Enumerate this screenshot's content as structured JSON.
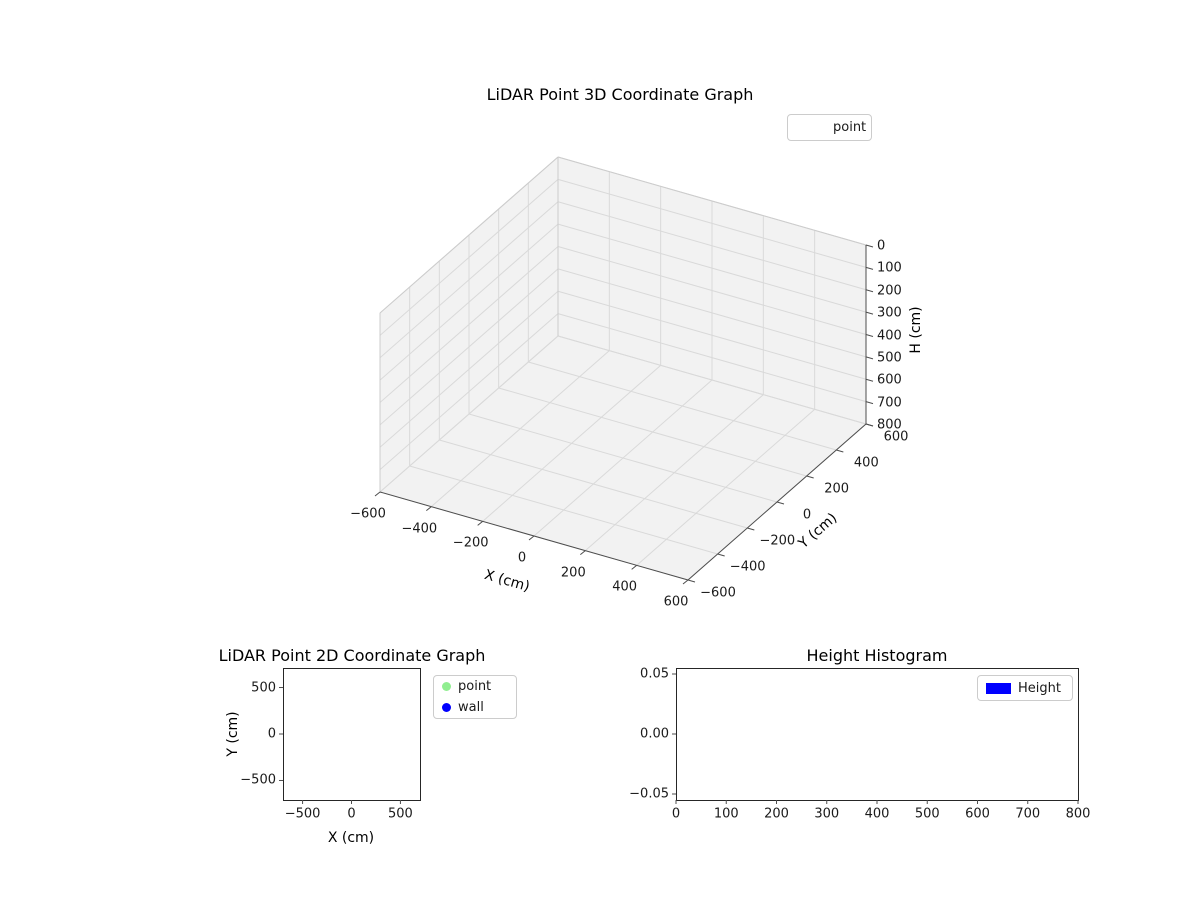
{
  "figure": {
    "background": "#ffffff"
  },
  "chart_data": [
    {
      "id": "lidar-3d",
      "type": "scatter3d",
      "title": "LiDAR Point 3D Coordinate Graph",
      "xlabel": "X (cm)",
      "ylabel": "Y (cm)",
      "zlabel": "H (cm)",
      "xticks": [
        -600,
        -400,
        -200,
        0,
        200,
        400,
        600
      ],
      "xtick_labels": [
        "−600",
        "−400",
        "−200",
        "0",
        "200",
        "400",
        "600"
      ],
      "yticks": [
        -600,
        -400,
        -200,
        0,
        200,
        400,
        600
      ],
      "ytick_labels": [
        "−600",
        "−400",
        "−200",
        "0",
        "200",
        "400",
        "600"
      ],
      "zticks": [
        0,
        100,
        200,
        300,
        400,
        500,
        600,
        700,
        800
      ],
      "ztick_labels": [
        "0",
        "100",
        "200",
        "300",
        "400",
        "500",
        "600",
        "700",
        "800"
      ],
      "zaxis_inverted": true,
      "grid": true,
      "legend": [
        {
          "label": "point",
          "marker": "none"
        }
      ],
      "series": [
        {
          "name": "point",
          "points": []
        }
      ]
    },
    {
      "id": "lidar-2d",
      "type": "scatter",
      "title": "LiDAR Point 2D Coordinate Graph",
      "xlabel": "X (cm)",
      "ylabel": "Y (cm)",
      "xlim": [
        -700,
        700
      ],
      "ylim": [
        -710,
        710
      ],
      "xticks": [
        -500,
        0,
        500
      ],
      "xtick_labels": [
        "−500",
        "0",
        "500"
      ],
      "yticks": [
        -500,
        0,
        500
      ],
      "ytick_labels": [
        "−500",
        "0",
        "500"
      ],
      "grid": false,
      "legend": [
        {
          "label": "point",
          "color": "#90EE90"
        },
        {
          "label": "wall",
          "color": "#0000FF"
        }
      ],
      "series": [
        {
          "name": "point",
          "points": []
        },
        {
          "name": "wall",
          "points": []
        }
      ]
    },
    {
      "id": "height-histogram",
      "type": "bar",
      "title": "Height Histogram",
      "xlabel": "",
      "ylabel": "",
      "xlim": [
        0,
        800
      ],
      "ylim": [
        -0.055,
        0.055
      ],
      "xticks": [
        0,
        100,
        200,
        300,
        400,
        500,
        600,
        700,
        800
      ],
      "xtick_labels": [
        "0",
        "100",
        "200",
        "300",
        "400",
        "500",
        "600",
        "700",
        "800"
      ],
      "yticks": [
        -0.05,
        0,
        0.05
      ],
      "ytick_labels": [
        "−0.05",
        "0.00",
        "0.05"
      ],
      "grid": false,
      "legend": [
        {
          "label": "Height",
          "color": "#0000FF"
        }
      ],
      "values": []
    }
  ]
}
